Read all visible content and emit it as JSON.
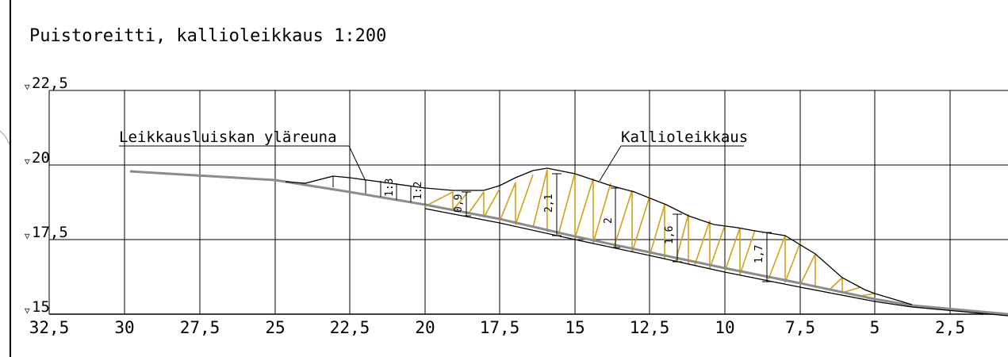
{
  "title": "Puistoreitti, kallioleikkaus 1:200",
  "elevation_labels": [
    "22,5",
    "20",
    "17,5",
    "15"
  ],
  "elevation_marker": "▽",
  "station_labels": [
    "32,5",
    "30",
    "27,5",
    "25",
    "22,5",
    "20",
    "17,5",
    "15",
    "12,5",
    "10",
    "7,5",
    "5",
    "2,5"
  ],
  "callouts": {
    "slope_top": "Leikkausluiskan yläreuna",
    "rock_cut": "Kallioleikkaus"
  },
  "slope_ratios": [
    "1:3",
    "1:2"
  ],
  "cut_depths": [
    "0,9",
    "2,1",
    "2",
    "1,6",
    "1,7"
  ],
  "colors": {
    "grid": "#000000",
    "ground_line": "#8c8c8c",
    "hatch": "#d4a017",
    "outline": "#000000"
  }
}
